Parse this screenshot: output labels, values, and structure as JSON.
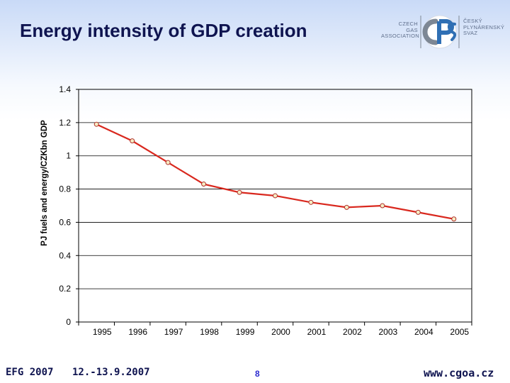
{
  "slide": {
    "title": "Energy intensity of GDP creation"
  },
  "logo": {
    "left_lines": [
      "CZECH",
      "GAS",
      "ASSOCIATION"
    ],
    "mark_text": "čPS",
    "right_lines": [
      "ČESKÝ",
      "PLYNÁRENSKÝ",
      "SVAZ"
    ]
  },
  "footer": {
    "event": "EFG 2007",
    "dates": "12.-13.9.2007",
    "page": "8",
    "url": "www.cgoa.cz"
  },
  "colors": {
    "title": "#0f1450",
    "line": "#d9281e",
    "marker_fill": "#f6ecc4",
    "marker_stroke": "#b0302a",
    "gridline": "#000000",
    "logo_blue": "#2f6fb4",
    "logo_grey": "#7d8794"
  },
  "chart_data": {
    "type": "line",
    "ylabel": "PJ fuels and energy/CZKbn GDP",
    "xlabel": "",
    "ylim": [
      0,
      1.4
    ],
    "yticks": [
      "0",
      "0.2",
      "0.4",
      "0.6",
      "0.8",
      "1",
      "1.2",
      "1.4"
    ],
    "grid": true,
    "categories": [
      "1995",
      "1996",
      "1997",
      "1998",
      "1999",
      "2000",
      "2001",
      "2002",
      "2003",
      "2004",
      "2005"
    ],
    "values": [
      1.19,
      1.09,
      0.96,
      0.83,
      0.78,
      0.76,
      0.72,
      0.69,
      0.7,
      0.66,
      0.62
    ]
  }
}
